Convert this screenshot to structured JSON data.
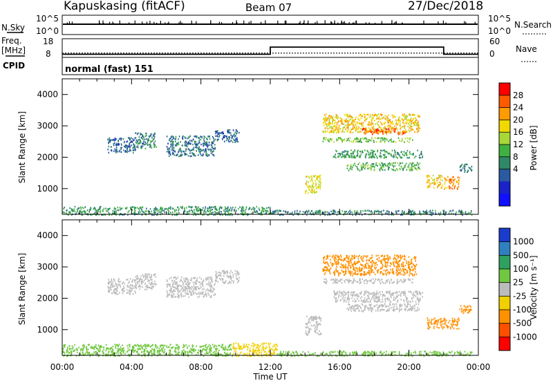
{
  "header": {
    "station": "Kapuskasing (fitACF)",
    "beam": "Beam 07",
    "date": "27/Dec/2018"
  },
  "noise_panel": {
    "left_label": "N.Sky",
    "left_ticks": [
      "10^5",
      "10^0"
    ],
    "right_label": "N.Search",
    "right_ticks": [
      "10^5",
      "10^0"
    ]
  },
  "freq_panel": {
    "left_label_line1": "Freq.",
    "left_label_line2": "[MHz]",
    "left_ticks": [
      "18",
      "8"
    ],
    "right_label": "Nave",
    "right_ticks": [
      "60",
      "0"
    ]
  },
  "cpid_panel": {
    "label": "CPID",
    "program": "normal (fast) 151"
  },
  "x_axis": {
    "label": "Time UT",
    "ticks": [
      "00:00",
      "04:00",
      "08:00",
      "12:00",
      "16:00",
      "20:00",
      "00:00"
    ]
  },
  "power_panel": {
    "ylabel": "Slant Range [km]",
    "yticks": [
      "4000",
      "3000",
      "2000",
      "1000"
    ],
    "colorbar_label": "Power [dB]",
    "colorbar_ticks": [
      "28",
      "24",
      "20",
      "16",
      "12",
      "8",
      "4"
    ],
    "colorbar_colors": [
      "#ff0000",
      "#ff5a00",
      "#ff9a00",
      "#f0d800",
      "#a8d838",
      "#40b040",
      "#308868",
      "#2a5aa0",
      "#1a22c8",
      "#1010ff"
    ]
  },
  "velocity_panel": {
    "ylabel": "Slant Range [km]",
    "yticks": [
      "4000",
      "3000",
      "2000",
      "1000"
    ],
    "colorbar_label": "Velocity [m s⁻¹]",
    "colorbar_ticks": [
      "1000",
      "500",
      "100",
      "25",
      "-25",
      "-100",
      "-500",
      "-1000"
    ],
    "colorbar_colors": [
      "#1a3ccc",
      "#3080c0",
      "#30a060",
      "#70c840",
      "#bcbcbc",
      "#f0d000",
      "#ff9000",
      "#ff5000",
      "#ff0000"
    ]
  },
  "chart_data": {
    "type": "heatmap",
    "x_range_hours": [
      0,
      24
    ],
    "y_range_km": [
      180,
      4500
    ],
    "power_regions": [
      {
        "hours": [
          2.6,
          4.2
        ],
        "km": [
          2150,
          2650
        ],
        "dB": 8
      },
      {
        "hours": [
          4.2,
          5.4
        ],
        "km": [
          2300,
          2800
        ],
        "dB": 10
      },
      {
        "hours": [
          6.0,
          8.8
        ],
        "km": [
          2050,
          2700
        ],
        "dB": 9
      },
      {
        "hours": [
          8.8,
          10.2
        ],
        "km": [
          2500,
          2900
        ],
        "dB": 8
      },
      {
        "hours": [
          0.0,
          12.0
        ],
        "km": [
          180,
          450
        ],
        "dB": 12
      },
      {
        "hours": [
          12.0,
          23.6
        ],
        "km": [
          180,
          330
        ],
        "dB": 10
      },
      {
        "hours": [
          14.0,
          14.9
        ],
        "km": [
          850,
          1450
        ],
        "dB": 20
      },
      {
        "hours": [
          15.0,
          20.6
        ],
        "km": [
          2800,
          3400
        ],
        "dB": 22
      },
      {
        "hours": [
          17.2,
          19.8
        ],
        "km": [
          2750,
          2950
        ],
        "dB": 28
      },
      {
        "hours": [
          15.0,
          20.2
        ],
        "km": [
          2500,
          2650
        ],
        "dB": 16
      },
      {
        "hours": [
          15.6,
          20.8
        ],
        "km": [
          2000,
          2250
        ],
        "dB": 12
      },
      {
        "hours": [
          16.4,
          20.6
        ],
        "km": [
          1600,
          1850
        ],
        "dB": 14
      },
      {
        "hours": [
          21.0,
          21.9
        ],
        "km": [
          1050,
          1450
        ],
        "dB": 22
      },
      {
        "hours": [
          22.0,
          22.9
        ],
        "km": [
          1000,
          1400
        ],
        "dB": 26
      },
      {
        "hours": [
          22.9,
          23.6
        ],
        "km": [
          1550,
          1800
        ],
        "dB": 10
      }
    ],
    "velocity_regions": [
      {
        "hours": [
          2.6,
          4.2
        ],
        "km": [
          2150,
          2650
        ],
        "ms": 0
      },
      {
        "hours": [
          4.2,
          5.4
        ],
        "km": [
          2300,
          2800
        ],
        "ms": 0
      },
      {
        "hours": [
          6.0,
          8.8
        ],
        "km": [
          2050,
          2700
        ],
        "ms": 0
      },
      {
        "hours": [
          8.8,
          10.2
        ],
        "km": [
          2500,
          2900
        ],
        "ms": 0
      },
      {
        "hours": [
          0.0,
          9.8
        ],
        "km": [
          180,
          550
        ],
        "ms": 60
      },
      {
        "hours": [
          9.8,
          12.4
        ],
        "km": [
          180,
          600
        ],
        "ms": -60
      },
      {
        "hours": [
          12.4,
          23.6
        ],
        "km": [
          180,
          330
        ],
        "ms": 50
      },
      {
        "hours": [
          14.0,
          14.9
        ],
        "km": [
          850,
          1450
        ],
        "ms": 0
      },
      {
        "hours": [
          15.0,
          20.4
        ],
        "km": [
          2750,
          3400
        ],
        "ms": -300
      },
      {
        "hours": [
          15.0,
          20.2
        ],
        "km": [
          2500,
          2650
        ],
        "ms": 0
      },
      {
        "hours": [
          15.6,
          20.8
        ],
        "km": [
          1900,
          2250
        ],
        "ms": 0
      },
      {
        "hours": [
          16.4,
          20.6
        ],
        "km": [
          1600,
          1850
        ],
        "ms": 0
      },
      {
        "hours": [
          21.0,
          22.9
        ],
        "km": [
          1050,
          1400
        ],
        "ms": -300
      },
      {
        "hours": [
          22.9,
          23.6
        ],
        "km": [
          1550,
          1800
        ],
        "ms": -300
      }
    ],
    "frequency_mhz": {
      "hours": [
        0,
        24
      ],
      "value": 10.3
    },
    "nave": [
      {
        "hours": [
          0.0,
          12.0
        ],
        "value": 10
      },
      {
        "hours": [
          12.0,
          22.0
        ],
        "value": 33
      },
      {
        "hours": [
          22.0,
          24.0
        ],
        "value": 10
      }
    ]
  }
}
